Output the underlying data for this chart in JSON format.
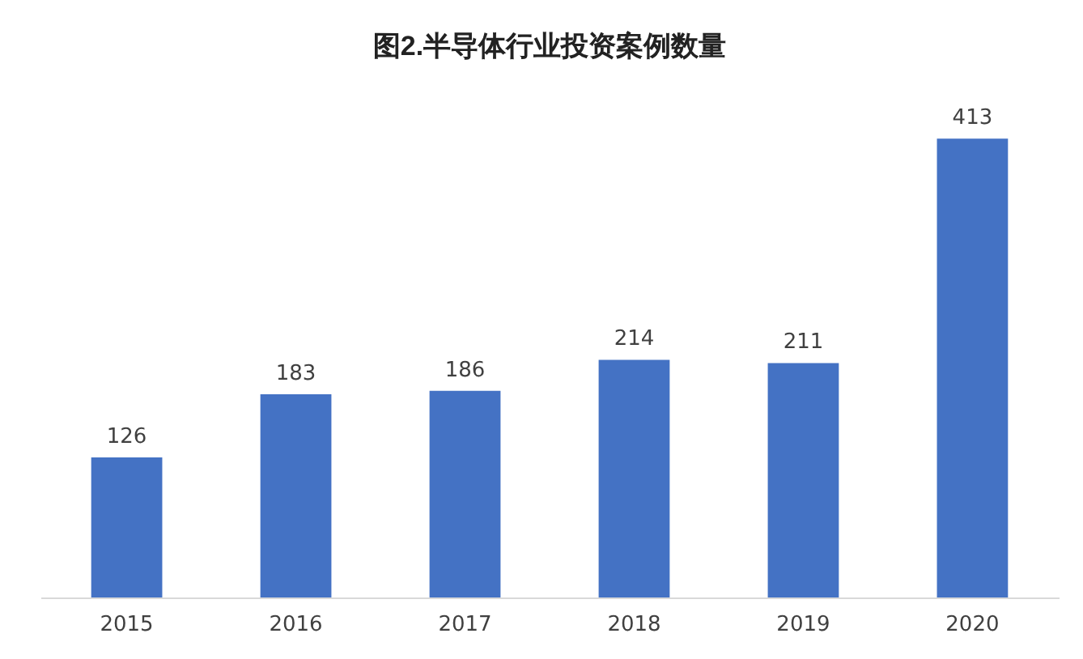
{
  "chart_data": {
    "type": "bar",
    "title": "图2.半导体行业投资案例数量",
    "categories": [
      "2015",
      "2016",
      "2017",
      "2018",
      "2019",
      "2020"
    ],
    "values": [
      126,
      183,
      186,
      214,
      211,
      413
    ],
    "color": "#4472c4",
    "data_labels": true,
    "grid": false
  }
}
